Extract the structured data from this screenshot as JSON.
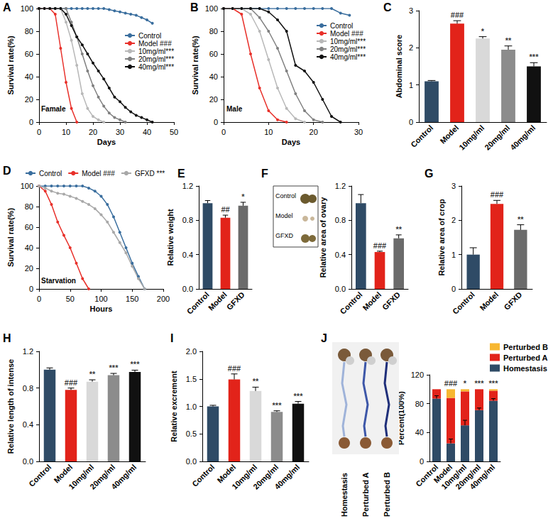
{
  "chart_data": [
    {
      "panel": "A",
      "type": "line",
      "annotation": "Famale",
      "x_label": "Days",
      "y_label": "Survival rate(%)",
      "x": [
        0,
        2,
        4,
        6,
        8,
        10,
        12,
        14,
        16,
        18,
        20,
        22,
        24,
        26,
        28,
        30,
        32,
        34,
        36,
        38,
        40,
        42,
        44
      ],
      "series": [
        {
          "name": "Control",
          "color": "#3a6e9e",
          "values": [
            100,
            100,
            100,
            100,
            100,
            100,
            100,
            100,
            100,
            100,
            100,
            100,
            100,
            99,
            98,
            97,
            96,
            95,
            94,
            92,
            90,
            87,
            null
          ]
        },
        {
          "name": "Model ###",
          "color": "#e8302a",
          "values": [
            100,
            100,
            100,
            95,
            65,
            35,
            12,
            0,
            null,
            null,
            null,
            null,
            null,
            null,
            null,
            null,
            null,
            null,
            null,
            null,
            null,
            null,
            null
          ]
        },
        {
          "name": "10mg/ml***",
          "color": "#b8b8b8",
          "values": [
            100,
            100,
            100,
            100,
            100,
            88,
            72,
            50,
            25,
            12,
            5,
            2,
            0,
            null,
            null,
            null,
            null,
            null,
            null,
            null,
            null,
            null,
            null
          ]
        },
        {
          "name": "20mg/ml***",
          "color": "#808080",
          "values": [
            100,
            100,
            100,
            100,
            100,
            100,
            88,
            75,
            60,
            45,
            32,
            22,
            14,
            8,
            4,
            2,
            0,
            null,
            null,
            null,
            null,
            null,
            null
          ]
        },
        {
          "name": "40mg/ml***",
          "color": "#111111",
          "values": [
            100,
            100,
            100,
            100,
            100,
            95,
            85,
            75,
            68,
            60,
            52,
            45,
            38,
            30,
            22,
            18,
            13,
            9,
            6,
            4,
            2,
            0,
            null
          ]
        }
      ],
      "xlim": [
        0,
        50
      ],
      "xticks": [
        0,
        10,
        20,
        30,
        40,
        50
      ],
      "ylim": [
        0,
        100
      ],
      "yticks": [
        0,
        20,
        40,
        60,
        80,
        100
      ],
      "legend": "upper right",
      "grid": false,
      "marker": "circle",
      "line_style": "solid"
    },
    {
      "panel": "B",
      "type": "line",
      "annotation": "Male",
      "x_label": "Days",
      "y_label": "Survival rate(%)",
      "x": [
        0,
        2,
        4,
        6,
        8,
        10,
        12,
        14,
        16,
        18,
        20,
        22,
        24,
        26,
        28
      ],
      "series": [
        {
          "name": "Control",
          "color": "#3a6e9e",
          "values": [
            100,
            100,
            100,
            100,
            100,
            100,
            100,
            100,
            100,
            100,
            100,
            100,
            100,
            96,
            94
          ]
        },
        {
          "name": "Model ###",
          "color": "#e8302a",
          "values": [
            100,
            100,
            95,
            60,
            30,
            10,
            2,
            0,
            null,
            null,
            null,
            null,
            null,
            null,
            null
          ]
        },
        {
          "name": "10mg/ml***",
          "color": "#b8b8b8",
          "values": [
            100,
            100,
            100,
            95,
            80,
            55,
            30,
            12,
            3,
            0,
            null,
            null,
            null,
            null,
            null
          ]
        },
        {
          "name": "20mg/ml***",
          "color": "#808080",
          "values": [
            100,
            100,
            100,
            100,
            92,
            80,
            65,
            45,
            25,
            10,
            2,
            0,
            null,
            null,
            null
          ]
        },
        {
          "name": "40mg/ml***",
          "color": "#111111",
          "values": [
            100,
            100,
            100,
            100,
            100,
            97,
            90,
            80,
            50,
            45,
            35,
            20,
            5,
            0,
            null
          ]
        }
      ],
      "xlim": [
        0,
        30
      ],
      "xticks": [
        0,
        10,
        20,
        30
      ],
      "ylim": [
        0,
        100
      ],
      "yticks": [
        0,
        20,
        40,
        60,
        80,
        100
      ],
      "legend": "upper right",
      "grid": false,
      "marker": "circle",
      "line_style": "solid"
    },
    {
      "panel": "C",
      "type": "bar",
      "y_label": "Abdominal score",
      "categories": [
        "Control",
        "Model",
        "10mg/ml",
        "20mg/ml",
        "40mg/ml"
      ],
      "values": [
        1.1,
        2.65,
        2.25,
        1.95,
        1.5
      ],
      "errors": [
        0.02,
        0.08,
        0.05,
        0.1,
        0.1
      ],
      "annotations": [
        null,
        "###",
        "*",
        "**",
        "***"
      ],
      "colors": [
        "#2f4b66",
        "#e2231a",
        "#d9d9d9",
        "#8c8c8c",
        "#111111"
      ],
      "ylim": [
        0,
        3
      ],
      "yticks": [
        0,
        1,
        2,
        3
      ],
      "grid": false
    },
    {
      "panel": "D",
      "type": "line",
      "annotation": "Starvation",
      "x_label": "Hours",
      "y_label": "Survival rate(%)",
      "x": [
        0,
        10,
        20,
        30,
        40,
        50,
        60,
        70,
        80,
        90,
        100,
        110,
        120,
        130,
        140,
        150,
        160,
        170,
        180
      ],
      "series": [
        {
          "name": "Control",
          "color": "#3a6e9e",
          "values": [
            100,
            100,
            100,
            100,
            100,
            100,
            100,
            100,
            98,
            95,
            90,
            82,
            70,
            55,
            40,
            25,
            12,
            0,
            null
          ]
        },
        {
          "name": "Model ###",
          "color": "#e8302a",
          "values": [
            100,
            95,
            82,
            65,
            52,
            40,
            25,
            10,
            0,
            null,
            null,
            null,
            null,
            null,
            null,
            null,
            null,
            null,
            null
          ]
        },
        {
          "name": "GFXD ***",
          "color": "#a8a8a8",
          "values": [
            100,
            98,
            95,
            93,
            92,
            90,
            88,
            85,
            82,
            78,
            72,
            65,
            55,
            45,
            35,
            22,
            10,
            0,
            null
          ]
        }
      ],
      "xlim": [
        0,
        200
      ],
      "xticks": [
        0,
        50,
        100,
        150,
        200
      ],
      "ylim": [
        0,
        100
      ],
      "yticks": [
        0,
        20,
        40,
        60,
        80,
        100
      ],
      "legend": "top",
      "grid": false,
      "marker": "circle",
      "line_style": "solid"
    },
    {
      "panel": "E",
      "type": "bar",
      "y_label": "Relative weight",
      "categories": [
        "Control",
        "Model",
        "GFXD"
      ],
      "values": [
        1.0,
        0.83,
        0.97
      ],
      "errors": [
        0.03,
        0.03,
        0.04
      ],
      "annotations": [
        null,
        "##",
        "*"
      ],
      "colors": [
        "#2f4b66",
        "#e2231a",
        "#6b6b6b"
      ],
      "ylim": [
        0,
        1.2
      ],
      "yticks": [
        {
          "value": 0,
          "label": "0.0"
        },
        0.4,
        0.8,
        1.2
      ],
      "grid": false
    },
    {
      "panel": "F",
      "type": "bar",
      "y_label": "Relative area of ovary",
      "categories": [
        "Control",
        "Model",
        "GFXD"
      ],
      "values": [
        1.0,
        0.43,
        0.59
      ],
      "errors": [
        0.1,
        0.01,
        0.04
      ],
      "annotations": [
        null,
        "###",
        "**"
      ],
      "colors": [
        "#2f4b66",
        "#e2231a",
        "#6b6b6b"
      ],
      "inset_labels": [
        "Control",
        "Model",
        "GFXD"
      ],
      "ylim": [
        0,
        1.2
      ],
      "yticks": [
        {
          "value": 0,
          "label": "0.0"
        },
        0.4,
        0.8,
        1.2
      ],
      "grid": false
    },
    {
      "panel": "G",
      "type": "bar",
      "y_label": "Relative area of crop",
      "categories": [
        "Control",
        "Model",
        "GFXD"
      ],
      "values": [
        1.0,
        2.48,
        1.72
      ],
      "errors": [
        0.2,
        0.1,
        0.15
      ],
      "annotations": [
        null,
        "###",
        "**"
      ],
      "colors": [
        "#2f4b66",
        "#e2231a",
        "#6b6b6b"
      ],
      "ylim": [
        0,
        3
      ],
      "yticks": [
        0,
        1,
        2,
        3
      ],
      "grid": false
    },
    {
      "panel": "H",
      "type": "bar",
      "y_label": "Relative length of intense",
      "categories": [
        "Control",
        "Model",
        "10mg/ml",
        "20mg/ml",
        "40mg/ml"
      ],
      "values": [
        1.0,
        0.78,
        0.87,
        0.94,
        0.975
      ],
      "errors": [
        0.02,
        0.02,
        0.02,
        0.02,
        0.02
      ],
      "annotations": [
        null,
        "###",
        "**",
        "***",
        "***"
      ],
      "colors": [
        "#2f4b66",
        "#e2231a",
        "#d9d9d9",
        "#8c8c8c",
        "#111111"
      ],
      "ylim": [
        0,
        1.2
      ],
      "yticks": [
        {
          "value": 0,
          "label": "0.0"
        },
        0.4,
        0.8,
        1.2
      ],
      "grid": false
    },
    {
      "panel": "I",
      "type": "bar",
      "y_label": "Relative excrement",
      "categories": [
        "Control",
        "Model",
        "10mg/ml",
        "20mg/ml",
        "40mg/ml"
      ],
      "values": [
        1.0,
        1.49,
        1.28,
        0.9,
        1.05
      ],
      "errors": [
        0.02,
        0.1,
        0.07,
        0.02,
        0.04
      ],
      "annotations": [
        null,
        "###",
        "**",
        "***",
        "***"
      ],
      "colors": [
        "#2f4b66",
        "#e2231a",
        "#d9d9d9",
        "#8c8c8c",
        "#111111"
      ],
      "ylim": [
        0,
        2
      ],
      "yticks": [
        {
          "value": 0,
          "label": "0.0"
        },
        0.5,
        {
          "value": 1,
          "label": "1.0"
        },
        1.5,
        {
          "value": 2,
          "label": "2.0"
        }
      ],
      "grid": false
    },
    {
      "panel": "J",
      "type": "bar",
      "stacked": true,
      "y_label": "Percent(100%)",
      "categories": [
        "Control",
        "Model",
        "10mg/ml",
        "20mg/ml",
        "40mg/ml"
      ],
      "series": [
        {
          "name": "Homestasis",
          "color": "#2f4b66",
          "values": [
            87,
            25,
            50,
            71,
            84
          ],
          "errors": [
            4,
            6,
            7,
            3,
            3
          ]
        },
        {
          "name": "Perturbed A",
          "color": "#e2231a",
          "values": [
            13,
            63,
            47,
            29,
            14
          ]
        },
        {
          "name": "Perturbed B",
          "color": "#f7b731",
          "values": [
            0,
            12,
            3,
            0,
            2
          ]
        }
      ],
      "annotations": [
        null,
        "###",
        "*",
        "***",
        "***"
      ],
      "image_labels": [
        "Homestasis",
        "Perturbed A",
        "Perturbed B"
      ],
      "ylim": [
        0,
        120
      ],
      "yticks": [
        0,
        40,
        80,
        120
      ],
      "legend": "upper right",
      "grid": false
    }
  ]
}
